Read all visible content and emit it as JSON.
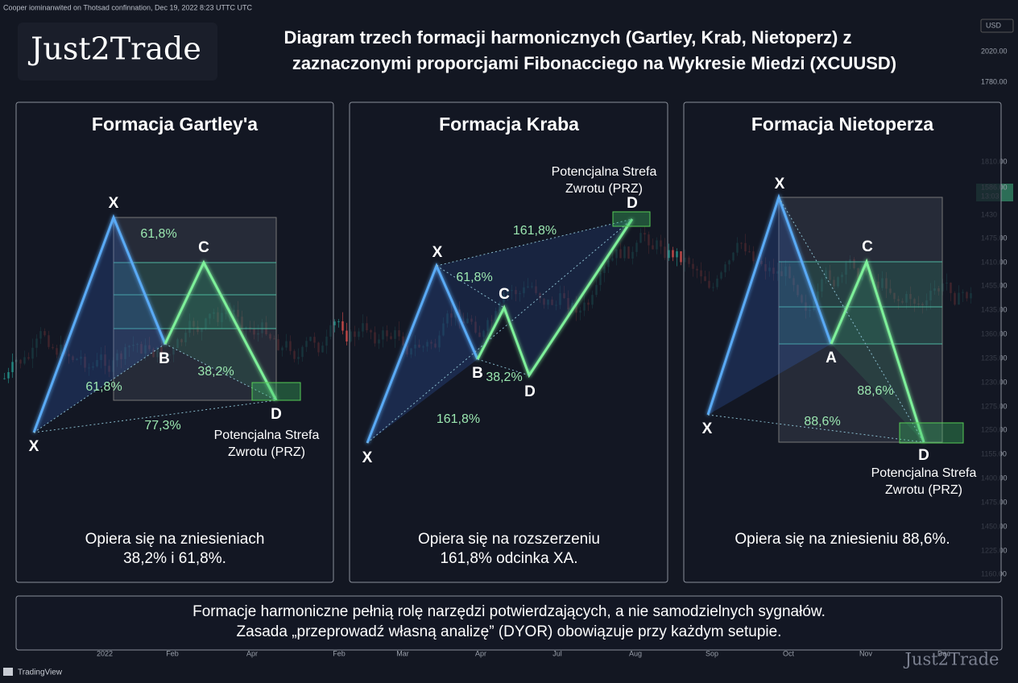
{
  "top_bar": "Cooper iominanwited on Thotsad confinnation, Dec 19, 2022 8:23 UTTC UTC",
  "logo": "Just2Trade",
  "header": {
    "title_line1": "Diagram trzech formacji harmonicznych (Gartley, Krab, Nietoperz) z",
    "title_line2": "zaznaczonymi proporcjami Fibonacciego na Wykresie Miedzi (XCUUSD)"
  },
  "panels": [
    {
      "title": "Formacja Gartley'a",
      "points": [
        "X",
        "X",
        "B",
        "C",
        "D"
      ],
      "fib_labels": [
        "61,8%",
        "38,2%",
        "61,8%",
        "77,3%"
      ],
      "prz": [
        "Potencjalna Strefa",
        "Zwrotu (PRZ)"
      ],
      "description": [
        "Opiera się na zniesieniach",
        "38,2% i 61,8%."
      ]
    },
    {
      "title": "Formacja Kraba",
      "points": [
        "X",
        "X",
        "B",
        "C",
        "D",
        "D"
      ],
      "fib_labels": [
        "61,8%",
        "38,2%",
        "161,8%",
        "161,8%"
      ],
      "prz": [
        "Potencjalna Strefa",
        "Zwrotu (PRZ)"
      ],
      "description": [
        "Opiera się na rozszerzeniu",
        "161,8% odcinka XA."
      ]
    },
    {
      "title": "Formacja Nietoperza",
      "points": [
        "X",
        "X",
        "A",
        "C",
        "D"
      ],
      "fib_labels": [
        "88,6%",
        "88,6%"
      ],
      "prz": [
        "Potencjalna Strefa",
        "Zwrotu (PRZ)"
      ],
      "description": [
        "Opiera się na zniesieniu 88,6%."
      ]
    }
  ],
  "footer": [
    "Formacje harmoniczne pełnią rolę narzędzi potwierdzających, a nie samodzielnych sygnałów.",
    "Zasada „przeprowadź własną analizę” (DYOR) obowiązuje przy każdym setupie."
  ],
  "price_axis": [
    "USD",
    "2020.00",
    "1780.00",
    "1810.00",
    "1586.00",
    "13:03",
    "1430",
    "1475.00",
    "1410.00",
    "1455.00",
    "1435.00",
    "1360.00",
    "1235.00",
    "1230.00",
    "1275.00",
    "1250.00",
    "1155.00",
    "1400.00",
    "1475.00",
    "1450.00",
    "1225.00",
    "1160.00"
  ],
  "time_axis": [
    "2022",
    "Feb",
    "Apr",
    "Feb",
    "Mar",
    "Apr",
    "Jul",
    "Aug",
    "Sop",
    "Oct",
    "Nov",
    "Dec"
  ],
  "tradingview": "TradingView",
  "watermark": "Just2Trade"
}
